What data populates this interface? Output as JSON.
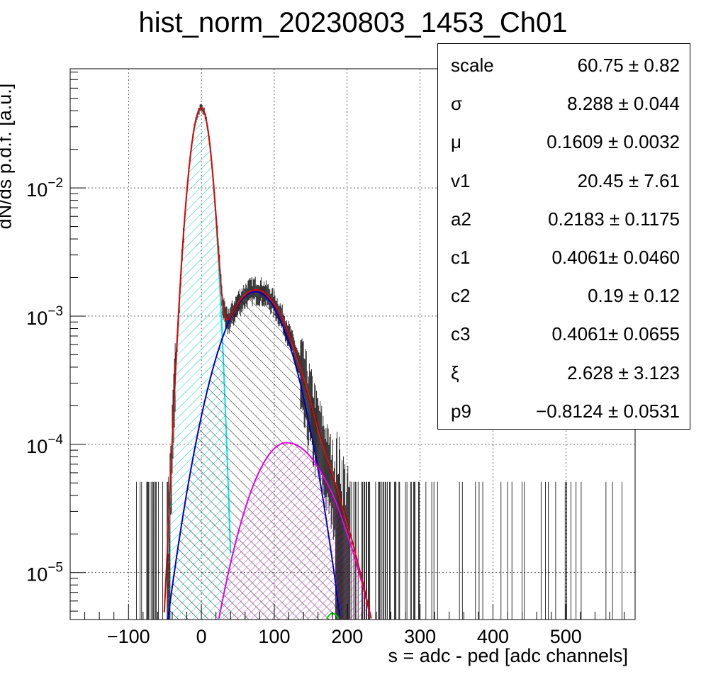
{
  "chart_data": {
    "type": "histogram",
    "title": "hist_norm_20230803_1453_Ch01",
    "xlabel": "s = adc - ped [adc channels]",
    "ylabel": "dN/ds p.d.f. [a.u.]",
    "xlim": [
      -180,
      595
    ],
    "ylim": [
      4.3e-06,
      0.085
    ],
    "yscale": "log",
    "grid": true,
    "x_ticks": [
      -100,
      0,
      100,
      200,
      300,
      400,
      500
    ],
    "x_tick_labels": [
      "−100",
      "0",
      "100",
      "200",
      "300",
      "400",
      "500"
    ],
    "y_ticks": [
      1e-05,
      0.0001,
      0.001,
      0.01
    ],
    "y_tick_labels": [
      {
        "base": "10",
        "exp": "−5"
      },
      {
        "base": "10",
        "exp": "−4"
      },
      {
        "base": "10",
        "exp": "−3"
      },
      {
        "base": "10",
        "exp": "−2"
      }
    ],
    "histogram": {
      "peak_x": 0,
      "peak_y": 0.042,
      "sigma": 8.288,
      "mu": 0.1609,
      "scale": 60.75,
      "color": "#000000"
    },
    "components": [
      {
        "color": "#00e5e5",
        "hatch": "cyan",
        "center": 0,
        "peak": 0.042,
        "sigma_left": 11.5,
        "sigma_right": 10
      },
      {
        "color": "#0000cc",
        "hatch": "black",
        "center": 74,
        "peak": 0.00155,
        "sigma_left": 35,
        "sigma_right": 34
      },
      {
        "color": "#e500e5",
        "hatch": "magenta",
        "center": 117,
        "peak": 0.000103,
        "sigma_left": 37,
        "sigma_right": 46
      },
      {
        "color": "#00cc00",
        "hatch": "none",
        "center": 180,
        "peak": 4.8e-06,
        "sigma_left": 18,
        "sigma_right": 18
      },
      {
        "color": "#e50000",
        "hatch": "none",
        "total": true
      }
    ],
    "stats": [
      {
        "name": "scale",
        "value": "60.75 ± 0.82"
      },
      {
        "name": "σ",
        "value": "8.288 ± 0.044"
      },
      {
        "name": "μ",
        "value": "0.1609 ± 0.0032"
      },
      {
        "name": "v1",
        "value": "20.45 ± 7.61"
      },
      {
        "name": "a2",
        "value": "0.2183 ± 0.1175"
      },
      {
        "name": "c1",
        "value": "0.4061± 0.0460"
      },
      {
        "name": "c2",
        "value": "0.19 ± 0.12"
      },
      {
        "name": "c3",
        "value": "0.4061± 0.0655"
      },
      {
        "name": "ξ",
        "value": "2.628 ± 3.123"
      },
      {
        "name": "p9",
        "value": "−0.8124 ± 0.0531"
      }
    ]
  }
}
